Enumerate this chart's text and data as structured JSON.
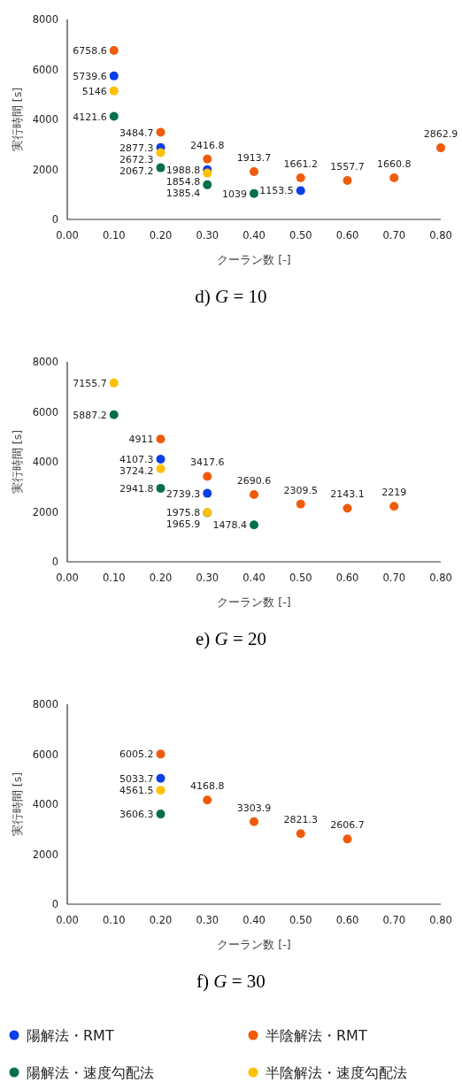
{
  "chart_data": [
    {
      "type": "scatter",
      "title": "d) G = 10",
      "xlabel": "クーラン数 [-]",
      "ylabel": "実行時間 [s]",
      "xlim": [
        0,
        0.8
      ],
      "xticks": [
        {
          "value": 0,
          "label": "0.00"
        },
        {
          "value": 0.1,
          "label": "0.10"
        },
        {
          "value": 0.2,
          "label": "0.20"
        },
        {
          "value": 0.3,
          "label": "0.30"
        },
        {
          "value": 0.4,
          "label": "0.40"
        },
        {
          "value": 0.5,
          "label": "0.50"
        },
        {
          "value": 0.6,
          "label": "0.60"
        },
        {
          "value": 0.7,
          "label": "0.70"
        },
        {
          "value": 0.8,
          "label": "0.80"
        }
      ],
      "ylim": [
        0,
        8000
      ],
      "yticks": [
        0,
        2000,
        4000,
        6000,
        8000
      ],
      "grid": false,
      "marker": "circle",
      "data_labels": true,
      "legend": false,
      "series": [
        {
          "color": "#0b3de8",
          "x": [
            0.1,
            0.2,
            0.3,
            0.5
          ],
          "values": [
            5739.6,
            2877.3,
            1988.8,
            1153.5
          ]
        },
        {
          "color": "#f05a0a",
          "x": [
            0.1,
            0.2,
            0.3,
            0.4,
            0.5,
            0.6,
            0.7,
            0.8
          ],
          "values": [
            6758.6,
            3484.7,
            2416.8,
            1913.7,
            1661.2,
            1557.7,
            1660.8,
            2862.9
          ]
        },
        {
          "color": "#03704a",
          "x": [
            0.1,
            0.2,
            0.3,
            0.4
          ],
          "values": [
            4121.6,
            2067.2,
            1385.4,
            1039
          ]
        },
        {
          "color": "#ffc000",
          "x": [
            0.1,
            0.2,
            0.3
          ],
          "values": [
            5146,
            2672.3,
            1854.8
          ]
        }
      ]
    },
    {
      "type": "scatter",
      "title": "e) G = 20",
      "xlabel": "クーラン数 [-]",
      "ylabel": "実行時間 [s]",
      "xlim": [
        0,
        0.8
      ],
      "xticks": [
        {
          "value": 0,
          "label": "0.00"
        },
        {
          "value": 0.1,
          "label": "0.10"
        },
        {
          "value": 0.2,
          "label": "0.20"
        },
        {
          "value": 0.3,
          "label": "0.30"
        },
        {
          "value": 0.4,
          "label": "0.40"
        },
        {
          "value": 0.5,
          "label": "0.50"
        },
        {
          "value": 0.6,
          "label": "0.60"
        },
        {
          "value": 0.7,
          "label": "0.70"
        },
        {
          "value": 0.8,
          "label": "0.80"
        }
      ],
      "ylim": [
        0,
        8000
      ],
      "yticks": [
        0,
        2000,
        4000,
        6000,
        8000
      ],
      "grid": false,
      "marker": "circle",
      "data_labels": true,
      "legend": false,
      "series": [
        {
          "color": "#0b3de8",
          "x": [
            0.2,
            0.3
          ],
          "values": [
            4107.3,
            2739.3
          ]
        },
        {
          "color": "#f05a0a",
          "x": [
            0.2,
            0.3,
            0.4,
            0.5,
            0.6,
            0.7
          ],
          "values": [
            4911,
            3417.6,
            2690.6,
            2309.5,
            2143.1,
            2219
          ]
        },
        {
          "color": "#03704a",
          "x": [
            0.1,
            0.2,
            0.3,
            0.4
          ],
          "values": [
            5887.2,
            2941.8,
            1965.9,
            1478.4
          ]
        },
        {
          "color": "#ffc000",
          "x": [
            0.1,
            0.2,
            0.3
          ],
          "values": [
            7155.7,
            3724.2,
            1975.8
          ]
        }
      ]
    },
    {
      "type": "scatter",
      "title": "f) G = 30",
      "xlabel": "クーラン数 [-]",
      "ylabel": "実行時間 [s]",
      "xlim": [
        0,
        0.8
      ],
      "xticks": [
        {
          "value": 0,
          "label": "0.00"
        },
        {
          "value": 0.1,
          "label": "0.10"
        },
        {
          "value": 0.2,
          "label": "0.20"
        },
        {
          "value": 0.3,
          "label": "0.30"
        },
        {
          "value": 0.4,
          "label": "0.40"
        },
        {
          "value": 0.5,
          "label": "0.50"
        },
        {
          "value": 0.6,
          "label": "0.60"
        },
        {
          "value": 0.7,
          "label": "0.70"
        },
        {
          "value": 0.8,
          "label": "0.80"
        }
      ],
      "ylim": [
        0,
        8000
      ],
      "yticks": [
        0,
        2000,
        4000,
        6000,
        8000
      ],
      "grid": false,
      "marker": "circle",
      "data_labels": true,
      "legend": "bottom",
      "series": [
        {
          "name": "陽解法・RMT",
          "color": "#0b3de8",
          "x": [
            0.2
          ],
          "values": [
            5033.7
          ]
        },
        {
          "name": "半陰解法・RMT",
          "color": "#f05a0a",
          "x": [
            0.2,
            0.3,
            0.4,
            0.5,
            0.6
          ],
          "values": [
            6005.2,
            4168.8,
            3303.9,
            2821.3,
            2606.7
          ]
        },
        {
          "name": "陽解法・速度勾配法",
          "color": "#03704a",
          "x": [
            0.2
          ],
          "values": [
            3606.3
          ]
        },
        {
          "name": "半陰解法・速度勾配法",
          "color": "#ffc000",
          "x": [
            0.2
          ],
          "values": [
            4561.5
          ]
        }
      ]
    }
  ]
}
